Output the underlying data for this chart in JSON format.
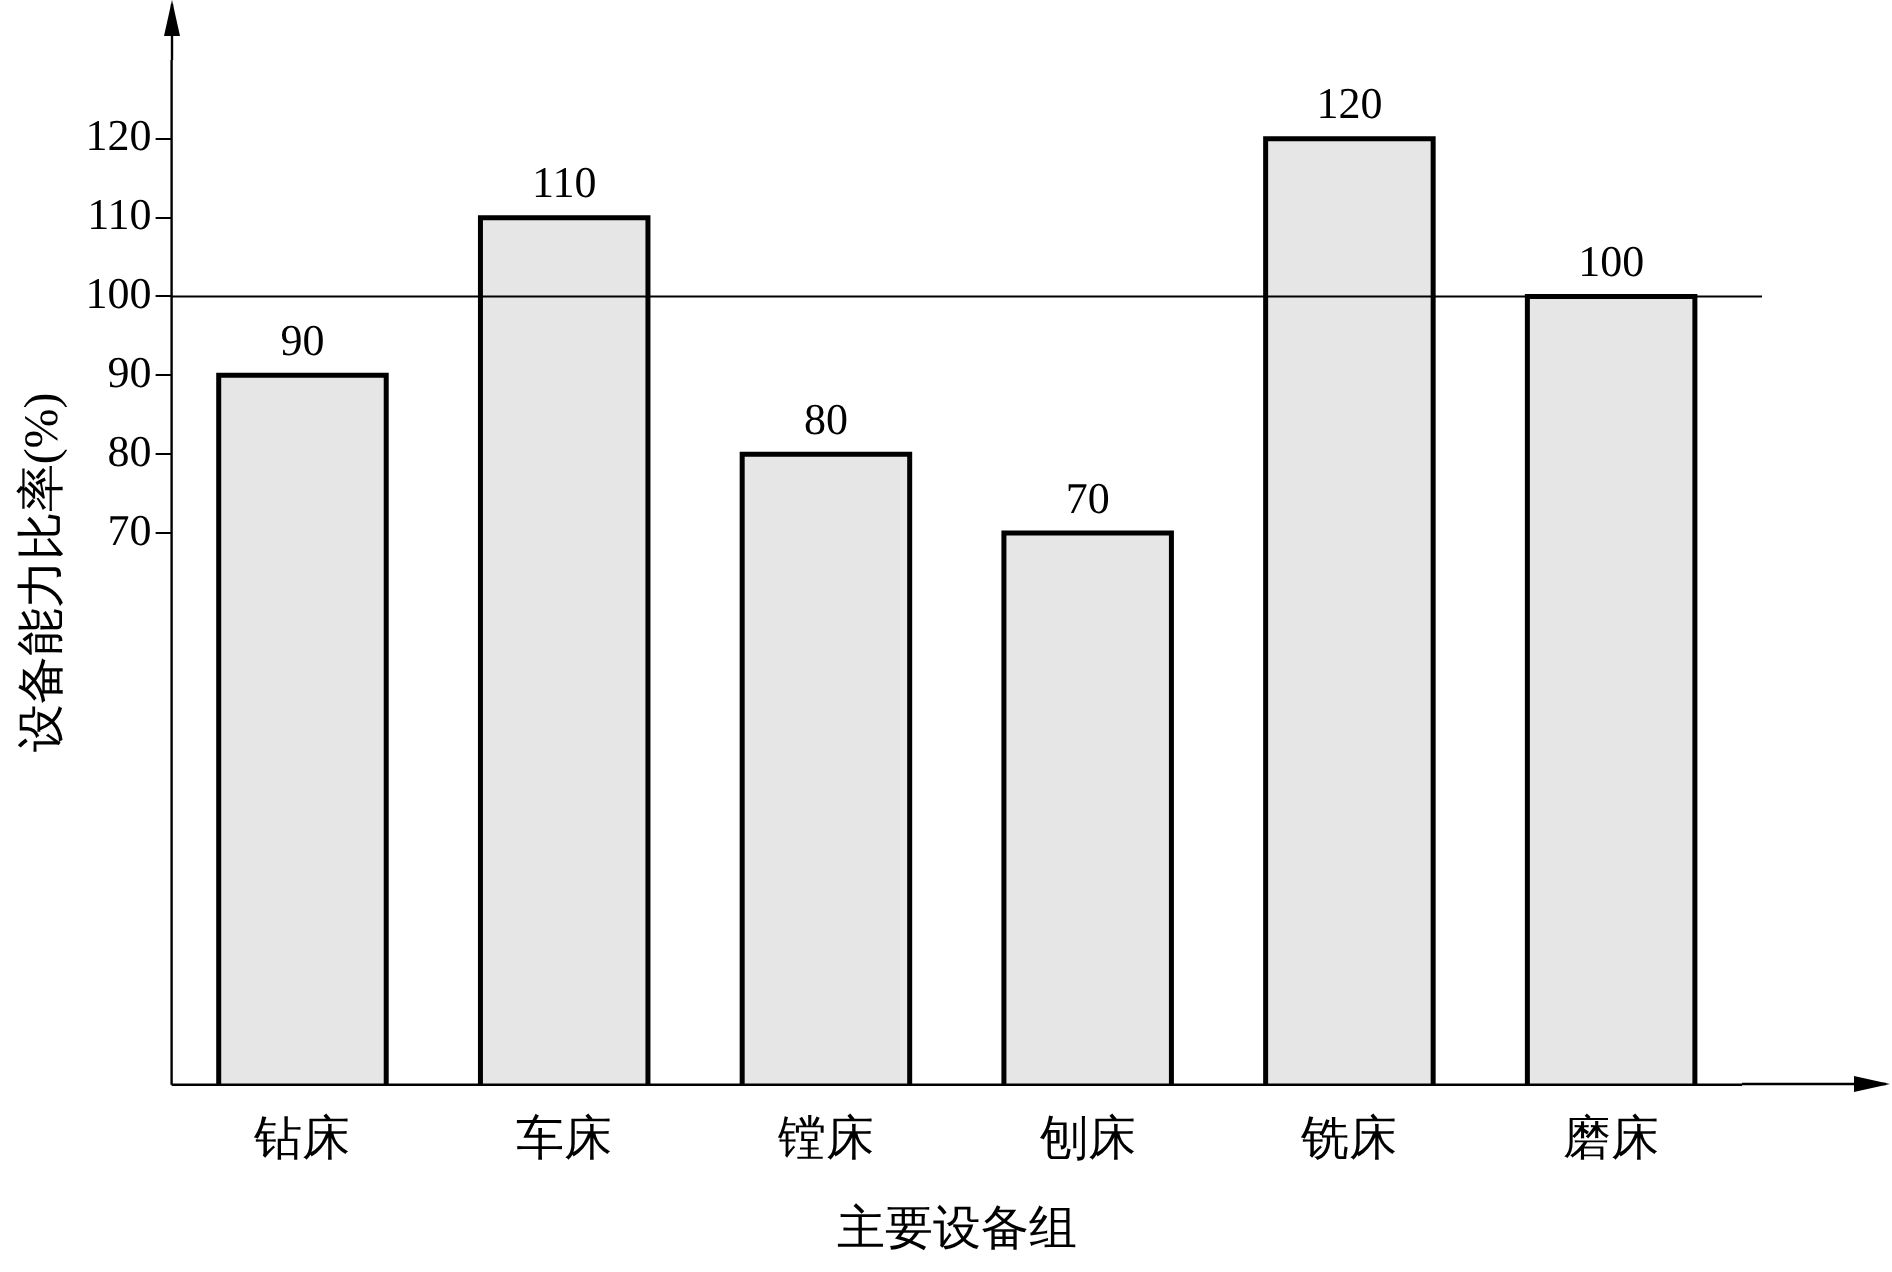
{
  "chart_data": {
    "type": "bar",
    "xlabel": "主要设备组",
    "ylabel": "设备能力比率(%)",
    "categories": [
      "钻床",
      "车床",
      "镗床",
      "刨床",
      "铣床",
      "磨床"
    ],
    "values": [
      90,
      110,
      80,
      70,
      120,
      100
    ],
    "color": "#e6e6e6",
    "ylim": [
      0,
      130
    ],
    "yticks": [
      70,
      80,
      90,
      100,
      110,
      120
    ],
    "ref_lines": [
      {
        "axis": "y",
        "value": 100,
        "color": "#000000"
      }
    ],
    "data_labels": true,
    "grid": false,
    "legend": false
  }
}
